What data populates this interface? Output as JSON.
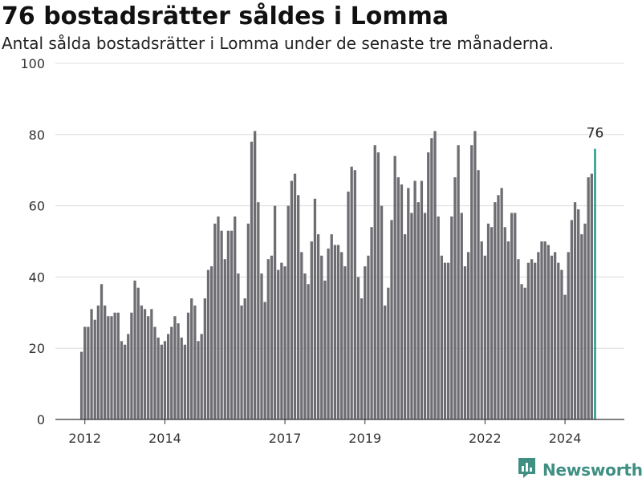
{
  "header": {
    "title": "76 bostadsrätter såldes i Lomma",
    "subtitle": "Antal sålda bostadsrätter i Lomma under de senaste tre månaderna."
  },
  "brand": {
    "name": "Newsworthy",
    "icon": "newsworthy-logo-icon",
    "color": "#3f8f83"
  },
  "chart_data": {
    "type": "bar",
    "ylim": [
      0,
      100
    ],
    "yticks": [
      0,
      20,
      40,
      60,
      80,
      100
    ],
    "xticks": [
      "2012",
      "2014",
      "2017",
      "2019",
      "2022",
      "2024"
    ],
    "grid": true,
    "bar_color": "#6e6d72",
    "highlight_color": "#2a9d8f",
    "annotation": "76",
    "start": "2011-12",
    "values": [
      19,
      26,
      26,
      31,
      28,
      32,
      38,
      32,
      29,
      29,
      30,
      30,
      22,
      21,
      24,
      30,
      39,
      37,
      32,
      31,
      29,
      31,
      26,
      23,
      21,
      22,
      24,
      26,
      29,
      27,
      23,
      21,
      30,
      34,
      32,
      22,
      24,
      34,
      42,
      43,
      55,
      57,
      53,
      45,
      53,
      53,
      57,
      41,
      32,
      34,
      55,
      78,
      81,
      61,
      41,
      33,
      45,
      46,
      60,
      42,
      44,
      43,
      60,
      67,
      69,
      63,
      47,
      41,
      38,
      50,
      62,
      52,
      46,
      39,
      48,
      52,
      49,
      49,
      47,
      43,
      64,
      71,
      70,
      40,
      34,
      43,
      46,
      54,
      77,
      75,
      60,
      32,
      37,
      56,
      74,
      68,
      66,
      52,
      65,
      58,
      67,
      61,
      67,
      58,
      75,
      79,
      81,
      57,
      46,
      44,
      44,
      57,
      68,
      77,
      58,
      43,
      47,
      77,
      81,
      70,
      50,
      46,
      55,
      54,
      61,
      63,
      65,
      54,
      50,
      58,
      58,
      45,
      38,
      37,
      44,
      45,
      44,
      47,
      50,
      50,
      49,
      46,
      47,
      44,
      42,
      35,
      47,
      56,
      61,
      59,
      52,
      55,
      68,
      69,
      76
    ]
  }
}
